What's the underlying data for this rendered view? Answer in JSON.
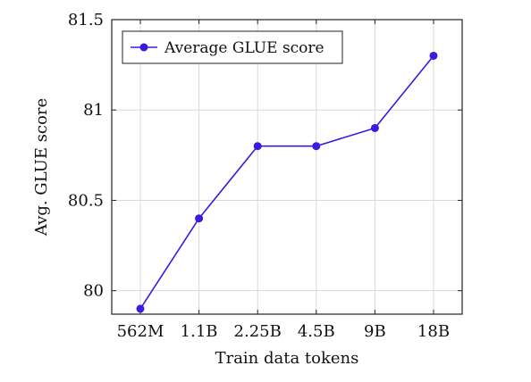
{
  "chart_data": {
    "type": "line",
    "categories": [
      "562M",
      "1.1B",
      "2.25B",
      "4.5B",
      "9B",
      "18B"
    ],
    "series": [
      {
        "name": "Average GLUE score",
        "values": [
          79.9,
          80.4,
          80.8,
          80.8,
          80.9,
          81.3
        ]
      }
    ],
    "xlabel": "Train data tokens",
    "ylabel": "Avg. GLUE score",
    "ylim": [
      79.87,
      81.5
    ],
    "yticks": [
      80,
      80.5,
      81,
      81.5
    ],
    "ytick_labels": [
      "80",
      "80.5",
      "81",
      "81.5"
    ],
    "grid": true,
    "legend_position": "top-left",
    "series_color": "#3a1be0",
    "grid_color": "#d9d9d9",
    "axis_color": "#222222"
  }
}
